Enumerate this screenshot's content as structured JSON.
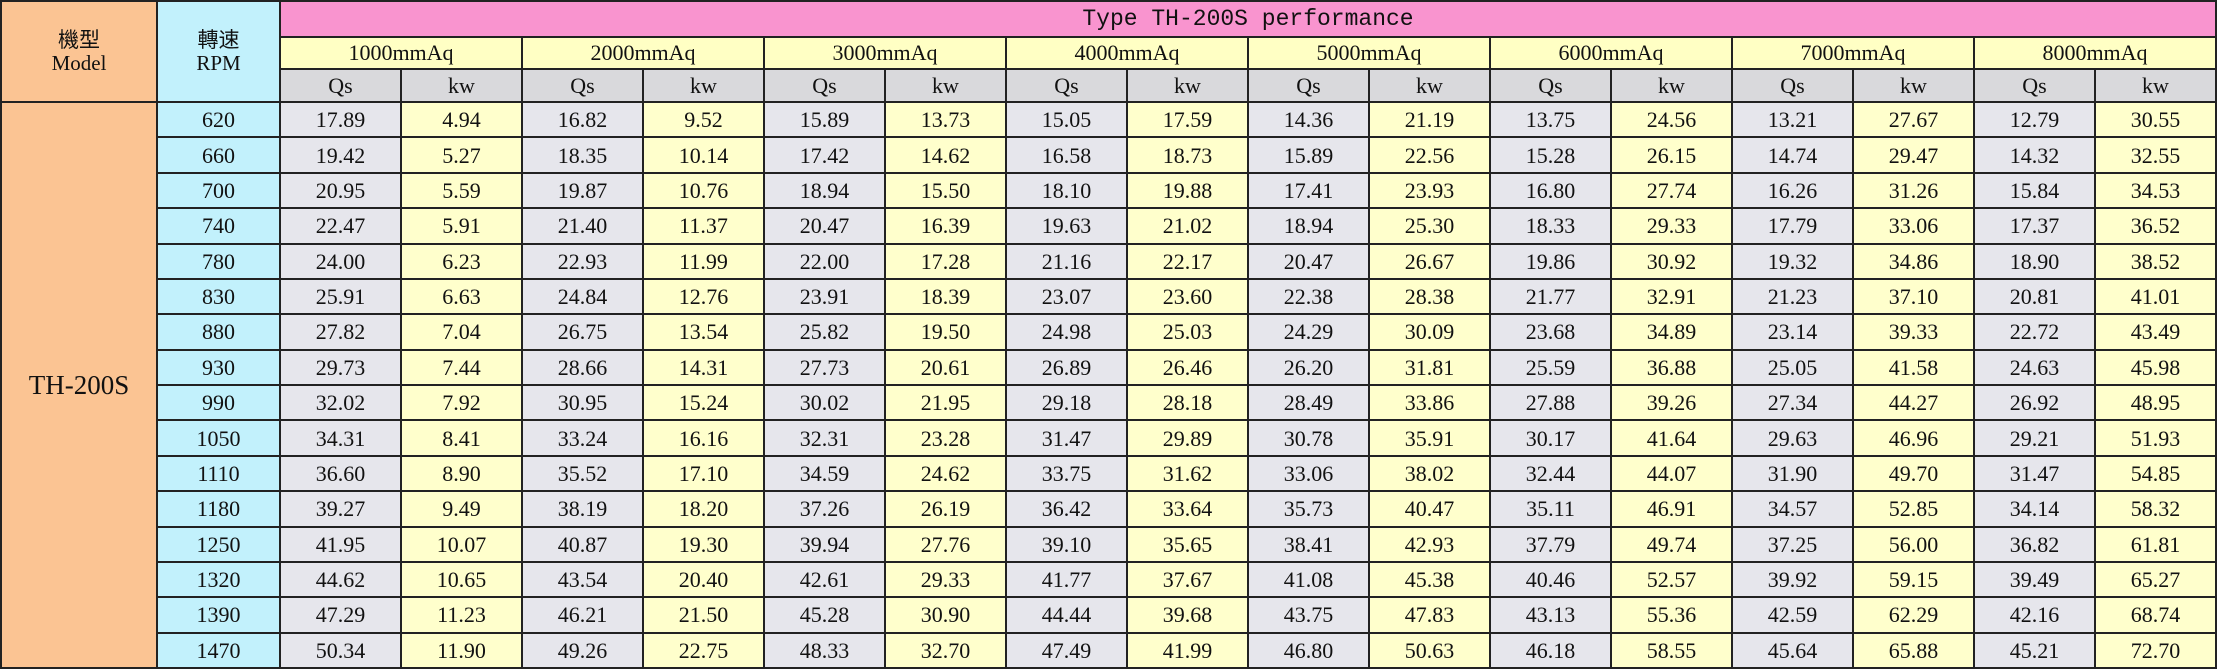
{
  "header": {
    "model_label": [
      "機型",
      "Model"
    ],
    "rpm_label": [
      "轉速",
      "RPM"
    ],
    "title": "Type TH-200S performance",
    "pressures": [
      {
        "label": "1000mmAq",
        "columns": [
          "Qs",
          "kw"
        ]
      },
      {
        "label": "2000mmAq",
        "columns": [
          "Qs",
          "kw"
        ]
      },
      {
        "label": "3000mmAq",
        "columns": [
          "Qs",
          "kw"
        ]
      },
      {
        "label": "4000mmAq",
        "columns": [
          "Qs",
          "kw"
        ]
      },
      {
        "label": "5000mmAq",
        "columns": [
          "Qs",
          "kw"
        ]
      },
      {
        "label": "6000mmAq",
        "columns": [
          "Qs",
          "kw"
        ]
      },
      {
        "label": "7000mmAq",
        "columns": [
          "Qs",
          "kw"
        ]
      },
      {
        "label": "8000mmAq",
        "columns": [
          "Qs",
          "kw"
        ]
      }
    ]
  },
  "table": {
    "model": "TH-200S",
    "rows": [
      {
        "rpm": "620",
        "values": [
          "17.89",
          "4.94",
          "16.82",
          "9.52",
          "15.89",
          "13.73",
          "15.05",
          "17.59",
          "14.36",
          "21.19",
          "13.75",
          "24.56",
          "13.21",
          "27.67",
          "12.79",
          "30.55"
        ]
      },
      {
        "rpm": "660",
        "values": [
          "19.42",
          "5.27",
          "18.35",
          "10.14",
          "17.42",
          "14.62",
          "16.58",
          "18.73",
          "15.89",
          "22.56",
          "15.28",
          "26.15",
          "14.74",
          "29.47",
          "14.32",
          "32.55"
        ]
      },
      {
        "rpm": "700",
        "values": [
          "20.95",
          "5.59",
          "19.87",
          "10.76",
          "18.94",
          "15.50",
          "18.10",
          "19.88",
          "17.41",
          "23.93",
          "16.80",
          "27.74",
          "16.26",
          "31.26",
          "15.84",
          "34.53"
        ]
      },
      {
        "rpm": "740",
        "values": [
          "22.47",
          "5.91",
          "21.40",
          "11.37",
          "20.47",
          "16.39",
          "19.63",
          "21.02",
          "18.94",
          "25.30",
          "18.33",
          "29.33",
          "17.79",
          "33.06",
          "17.37",
          "36.52"
        ]
      },
      {
        "rpm": "780",
        "values": [
          "24.00",
          "6.23",
          "22.93",
          "11.99",
          "22.00",
          "17.28",
          "21.16",
          "22.17",
          "20.47",
          "26.67",
          "19.86",
          "30.92",
          "19.32",
          "34.86",
          "18.90",
          "38.52"
        ]
      },
      {
        "rpm": "830",
        "values": [
          "25.91",
          "6.63",
          "24.84",
          "12.76",
          "23.91",
          "18.39",
          "23.07",
          "23.60",
          "22.38",
          "28.38",
          "21.77",
          "32.91",
          "21.23",
          "37.10",
          "20.81",
          "41.01"
        ]
      },
      {
        "rpm": "880",
        "values": [
          "27.82",
          "7.04",
          "26.75",
          "13.54",
          "25.82",
          "19.50",
          "24.98",
          "25.03",
          "24.29",
          "30.09",
          "23.68",
          "34.89",
          "23.14",
          "39.33",
          "22.72",
          "43.49"
        ]
      },
      {
        "rpm": "930",
        "values": [
          "29.73",
          "7.44",
          "28.66",
          "14.31",
          "27.73",
          "20.61",
          "26.89",
          "26.46",
          "26.20",
          "31.81",
          "25.59",
          "36.88",
          "25.05",
          "41.58",
          "24.63",
          "45.98"
        ]
      },
      {
        "rpm": "990",
        "values": [
          "32.02",
          "7.92",
          "30.95",
          "15.24",
          "30.02",
          "21.95",
          "29.18",
          "28.18",
          "28.49",
          "33.86",
          "27.88",
          "39.26",
          "27.34",
          "44.27",
          "26.92",
          "48.95"
        ]
      },
      {
        "rpm": "1050",
        "values": [
          "34.31",
          "8.41",
          "33.24",
          "16.16",
          "32.31",
          "23.28",
          "31.47",
          "29.89",
          "30.78",
          "35.91",
          "30.17",
          "41.64",
          "29.63",
          "46.96",
          "29.21",
          "51.93"
        ]
      },
      {
        "rpm": "1110",
        "values": [
          "36.60",
          "8.90",
          "35.52",
          "17.10",
          "34.59",
          "24.62",
          "33.75",
          "31.62",
          "33.06",
          "38.02",
          "32.44",
          "44.07",
          "31.90",
          "49.70",
          "31.47",
          "54.85"
        ]
      },
      {
        "rpm": "1180",
        "values": [
          "39.27",
          "9.49",
          "38.19",
          "18.20",
          "37.26",
          "26.19",
          "36.42",
          "33.64",
          "35.73",
          "40.47",
          "35.11",
          "46.91",
          "34.57",
          "52.85",
          "34.14",
          "58.32"
        ]
      },
      {
        "rpm": "1250",
        "values": [
          "41.95",
          "10.07",
          "40.87",
          "19.30",
          "39.94",
          "27.76",
          "39.10",
          "35.65",
          "38.41",
          "42.93",
          "37.79",
          "49.74",
          "37.25",
          "56.00",
          "36.82",
          "61.81"
        ]
      },
      {
        "rpm": "1320",
        "values": [
          "44.62",
          "10.65",
          "43.54",
          "20.40",
          "42.61",
          "29.33",
          "41.77",
          "37.67",
          "41.08",
          "45.38",
          "40.46",
          "52.57",
          "39.92",
          "59.15",
          "39.49",
          "65.27"
        ]
      },
      {
        "rpm": "1390",
        "values": [
          "47.29",
          "11.23",
          "46.21",
          "21.50",
          "45.28",
          "30.90",
          "44.44",
          "39.68",
          "43.75",
          "47.83",
          "43.13",
          "55.36",
          "42.59",
          "62.29",
          "42.16",
          "68.74"
        ]
      },
      {
        "rpm": "1470",
        "values": [
          "50.34",
          "11.90",
          "49.26",
          "22.75",
          "48.33",
          "32.70",
          "47.49",
          "41.99",
          "46.80",
          "50.63",
          "46.18",
          "58.55",
          "45.64",
          "65.88",
          "45.21",
          "72.70"
        ]
      }
    ]
  }
}
